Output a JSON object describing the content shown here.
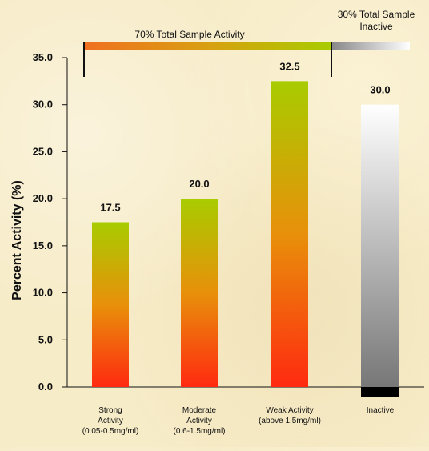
{
  "chart_data": {
    "type": "bar",
    "title": "",
    "xlabel": "",
    "ylabel": "Percent Activity (%)",
    "ylim": [
      0,
      35
    ],
    "yticks": [
      "0.0",
      "5.0",
      "10.0",
      "15.0",
      "20.0",
      "25.0",
      "30.0",
      "35.0"
    ],
    "grid": false,
    "categories": [
      [
        "Strong",
        "Activity",
        "(0.05-0.5mg/ml)"
      ],
      [
        "Moderate",
        "Activity",
        "(0.6-1.5mg/ml)"
      ],
      [
        "Weak Activity",
        "(above 1.5mg/ml)"
      ],
      [
        "Inactive"
      ]
    ],
    "values": [
      17.5,
      20.0,
      32.5,
      30.0
    ],
    "value_labels": [
      "17.5",
      "20.0",
      "32.5",
      "30.0"
    ],
    "annotations": {
      "active_banner": "70% Total  Sample Activity",
      "inactive_banner": [
        "30% Total  Sample",
        "Inactive"
      ]
    },
    "colors": {
      "active_top": "#a8cc00",
      "active_mid": "#e8900a",
      "active_bottom": "#ff2a10",
      "inactive_top": "#ffffff",
      "inactive_bottom": "#777777",
      "inactive_base": "#000000"
    }
  }
}
